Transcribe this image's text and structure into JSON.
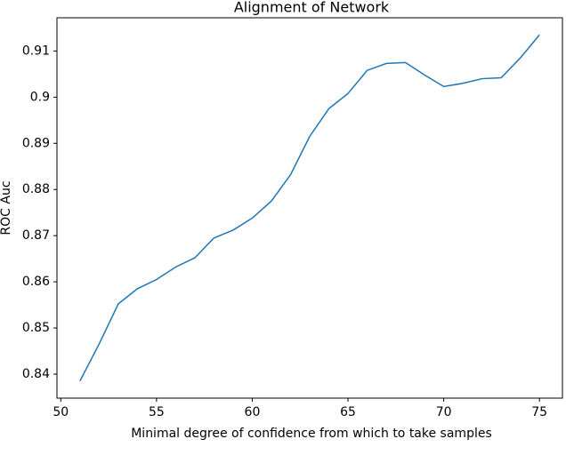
{
  "chart_data": {
    "type": "line",
    "title": "Alignment of Network",
    "x_label": "Minimal degree of confidence from which to take samples",
    "y_label": "ROC Auc",
    "x": [
      51,
      52,
      53,
      54,
      55,
      56,
      57,
      58,
      59,
      60,
      61,
      62,
      63,
      64,
      65,
      66,
      67,
      68,
      69,
      70,
      71,
      72,
      73,
      74,
      75
    ],
    "series": [
      {
        "name": "ROC Auc",
        "color": "#1f77b4",
        "values": [
          0.8385,
          0.8465,
          0.8552,
          0.8585,
          0.8605,
          0.8632,
          0.8652,
          0.8695,
          0.8712,
          0.8738,
          0.8775,
          0.8832,
          0.8915,
          0.8975,
          0.9008,
          0.9058,
          0.9073,
          0.9075,
          0.9048,
          0.9023,
          0.903,
          0.904,
          0.9042,
          0.9085,
          0.9135
        ]
      }
    ],
    "xlim": [
      49.8,
      76.2
    ],
    "ylim": [
      0.8348,
      0.9172
    ],
    "xticks": [
      50,
      55,
      60,
      65,
      70,
      75
    ],
    "yticks": [
      0.84,
      0.85,
      0.86,
      0.87,
      0.88,
      0.89,
      0.9,
      0.91
    ]
  }
}
